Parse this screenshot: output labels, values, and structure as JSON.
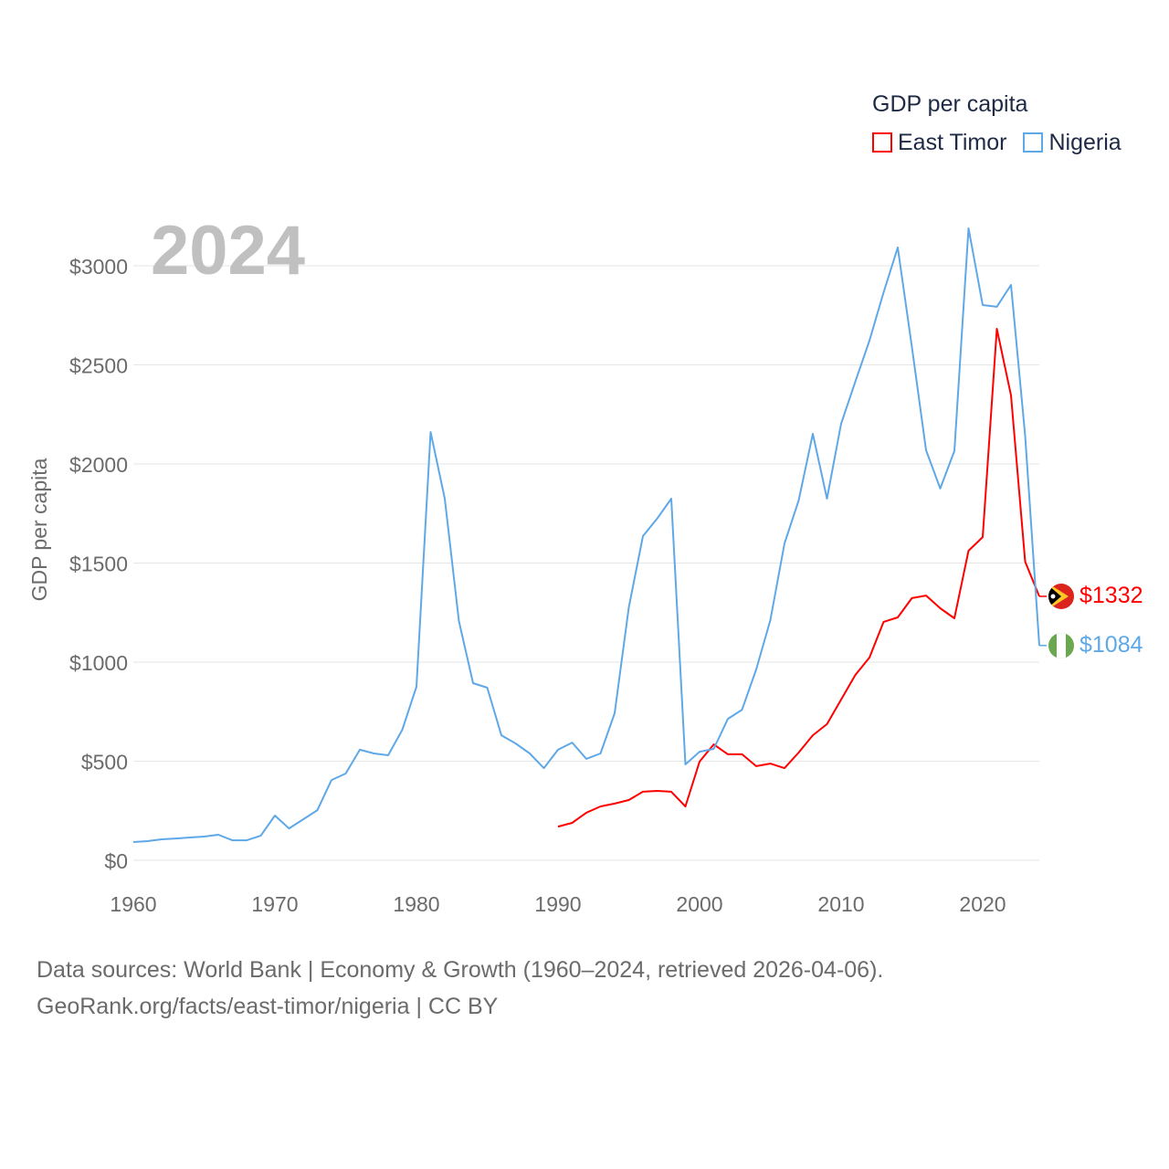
{
  "chart_data": {
    "type": "line",
    "year_label": "2024",
    "ylabel": "GDP per capita",
    "xlabel": "",
    "legend_title": "GDP per capita",
    "legend_placement": "top-right",
    "xlim": [
      1960,
      2024
    ],
    "ylim": [
      0,
      3200
    ],
    "x_ticks": [
      1960,
      1970,
      1980,
      1990,
      2000,
      2010,
      2020
    ],
    "y_ticks": [
      0,
      500,
      1000,
      1500,
      2000,
      2500,
      3000
    ],
    "y_tick_labels": [
      "$0",
      "$500",
      "$1000",
      "$1500",
      "$2000",
      "$2500",
      "$3000"
    ],
    "grid": true,
    "series": [
      {
        "name": "East Timor",
        "color": "#ff0000",
        "end_label": "$1332",
        "start_year": 1990,
        "values": [
          170,
          189,
          240,
          272,
          286,
          304,
          346,
          350,
          346,
          272,
          498,
          585,
          535,
          535,
          475,
          488,
          465,
          544,
          631,
          687,
          811,
          935,
          1023,
          1203,
          1226,
          1323,
          1336,
          1272,
          1221,
          1562,
          1631,
          2682,
          2346,
          1507,
          1332
        ]
      },
      {
        "name": "Nigeria",
        "color": "#5fa8e8",
        "end_label": "$1084",
        "start_year": 1960,
        "values": [
          92,
          97,
          106,
          110,
          115,
          120,
          129,
          101,
          101,
          124,
          226,
          161,
          207,
          253,
          405,
          438,
          558,
          539,
          530,
          659,
          876,
          2161,
          1825,
          1207,
          894,
          871,
          631,
          590,
          539,
          465,
          558,
          594,
          512,
          539,
          742,
          1276,
          1636,
          1724,
          1825,
          484,
          548,
          562,
          714,
          760,
          963,
          1212,
          1599,
          1816,
          2152,
          1825,
          2203,
          2415,
          2622,
          2866,
          3092,
          2590,
          2069,
          1876,
          2065,
          3189,
          2802,
          2793,
          2903,
          2143,
          1084
        ]
      }
    ]
  },
  "footer": {
    "line1": "Data sources: World Bank | Economy & Growth (1960–2024, retrieved 2026-04-06).",
    "line2": "GeoRank.org/facts/east-timor/nigeria | CC BY"
  }
}
